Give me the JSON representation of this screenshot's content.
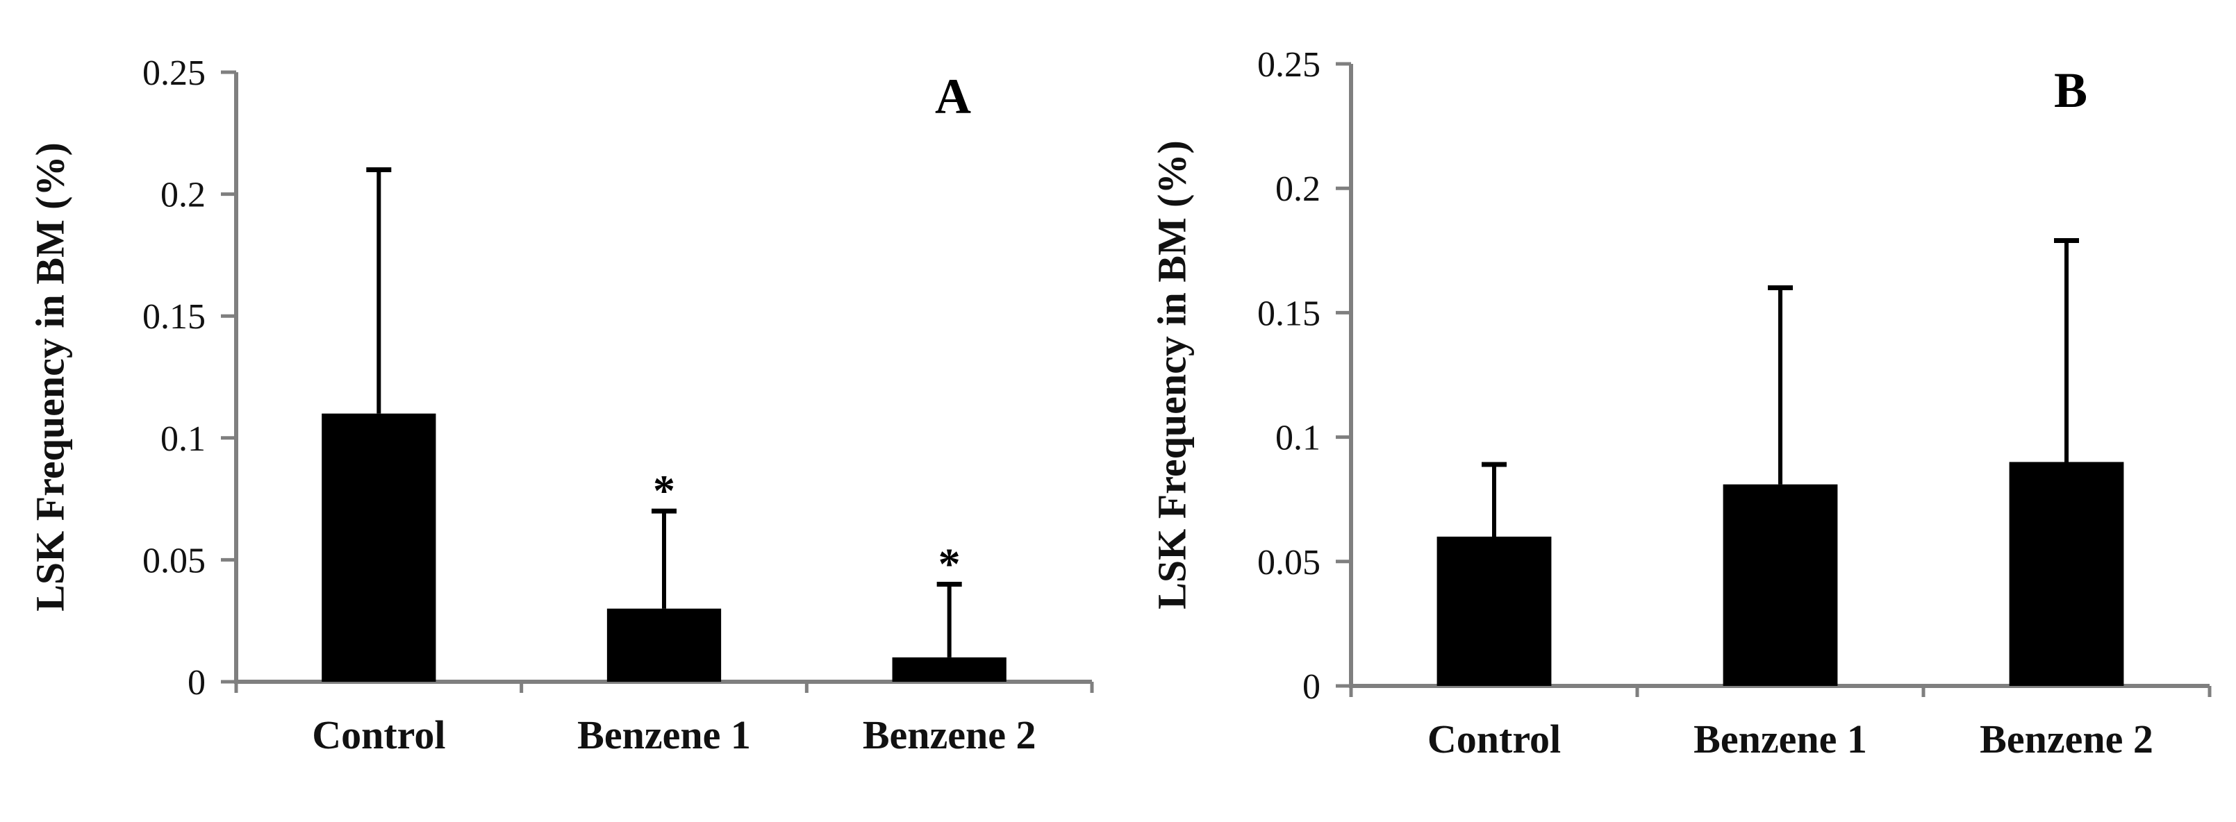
{
  "chart_data": [
    {
      "type": "bar",
      "panel_label": "A",
      "categories": [
        "Control",
        "Benzene 1",
        "Benzene 2"
      ],
      "values": [
        0.11,
        0.03,
        0.01
      ],
      "error_upper": [
        0.1,
        0.04,
        0.03
      ],
      "significance": [
        "",
        "*",
        "*"
      ],
      "ylabel": "LSK Frequency in BM (%)",
      "ylim": [
        0,
        0.25
      ],
      "yticks": [
        0,
        0.05,
        0.1,
        0.15,
        0.2,
        0.25
      ],
      "ytick_labels": [
        "0",
        "0.05",
        "0.1",
        "0.15",
        "0.2",
        "0.25"
      ],
      "grid": false,
      "bar_color": "#000000",
      "axis_color": "#7f7f7f"
    },
    {
      "type": "bar",
      "panel_label": "B",
      "categories": [
        "Control",
        "Benzene 1",
        "Benzene 2"
      ],
      "values": [
        0.06,
        0.081,
        0.09
      ],
      "error_upper": [
        0.029,
        0.079,
        0.089
      ],
      "significance": [
        "",
        "",
        ""
      ],
      "ylabel": "LSK Frequency in BM (%)",
      "ylim": [
        0,
        0.25
      ],
      "yticks": [
        0,
        0.05,
        0.1,
        0.15,
        0.2,
        0.25
      ],
      "ytick_labels": [
        "0",
        "0.05",
        "0.1",
        "0.15",
        "0.2",
        "0.25"
      ],
      "grid": false,
      "bar_color": "#000000",
      "axis_color": "#7f7f7f"
    }
  ]
}
